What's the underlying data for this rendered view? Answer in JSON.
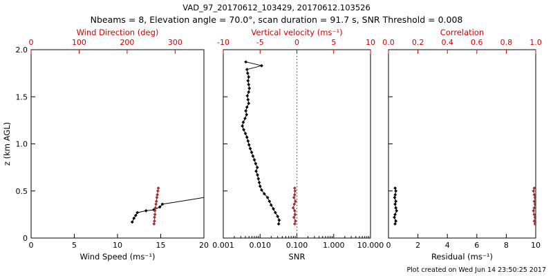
{
  "title": "VAD_97_20170612_103429, 20170612.103526",
  "subtitle": "Nbeams = 8, Elevation angle = 70.0°, scan duration = 91.7 s, SNR Threshold = 0.008",
  "footnote": "Plot created on Wed Jun 14 23:50:25 2017",
  "palette": {
    "black": "#000000",
    "axis_red": "#d40000",
    "marker_red": "#a03030"
  },
  "chart_data": [
    {
      "id": "wind-profile",
      "type": "line",
      "y_axis": {
        "label": "z (km AGL)",
        "range": [
          0,
          2.0
        ],
        "ticks": [
          0,
          0.5,
          1.0,
          1.5,
          2.0
        ],
        "tick_labels": [
          "0",
          "0.5",
          "1.0",
          "1.5",
          "2.0"
        ],
        "show_labels": true
      },
      "bottom_axis": {
        "label": "Wind Speed (ms⁻¹)",
        "scale": "linear",
        "range": [
          0,
          20
        ],
        "ticks": [
          0,
          5,
          10,
          15,
          20
        ],
        "tick_labels": [
          "0",
          "5",
          "10",
          "15",
          "20"
        ]
      },
      "top_axis": {
        "label": "Wind Direction (deg)",
        "scale": "linear",
        "range": [
          0,
          360
        ],
        "ticks": [
          0,
          100,
          200,
          300
        ],
        "tick_labels": [
          "0",
          "100",
          "200",
          "300"
        ]
      },
      "series": [
        {
          "name": "wind-speed",
          "axis": "bottom",
          "color": "black",
          "edge_clip": true,
          "points": [
            [
              11.7,
              0.17
            ],
            [
              11.9,
              0.21
            ],
            [
              12.1,
              0.24
            ],
            [
              12.3,
              0.27
            ],
            [
              13.3,
              0.29
            ],
            [
              14.2,
              0.3
            ],
            [
              14.9,
              0.33
            ],
            [
              15.2,
              0.36
            ],
            [
              20.0,
              0.43
            ]
          ]
        },
        {
          "name": "wind-direction",
          "axis": "top",
          "color": "marker_red",
          "points": [
            [
              256,
              0.15
            ],
            [
              257,
              0.18
            ],
            [
              257,
              0.22
            ],
            [
              258,
              0.25
            ],
            [
              258,
              0.29
            ],
            [
              259,
              0.32
            ],
            [
              260,
              0.36
            ],
            [
              261,
              0.39
            ],
            [
              262,
              0.43
            ],
            [
              263,
              0.46
            ],
            [
              264,
              0.5
            ],
            [
              265,
              0.53
            ]
          ]
        }
      ]
    },
    {
      "id": "snr",
      "type": "line",
      "y_axis": {
        "label": null,
        "range": [
          0,
          2.0
        ],
        "ticks": [
          0,
          0.5,
          1.0,
          1.5,
          2.0
        ],
        "tick_labels": [
          "0",
          "0.5",
          "1.0",
          "1.5",
          "2.0"
        ],
        "show_labels": false
      },
      "bottom_axis": {
        "label": "SNR",
        "scale": "log",
        "range": [
          0.001,
          10.0
        ],
        "ticks": [
          0.001,
          0.01,
          0.1,
          1.0,
          10.0
        ],
        "tick_labels": [
          "0.001",
          "0.010",
          "0.100",
          "1.000",
          "10.000"
        ]
      },
      "top_axis": {
        "label": "Vertical velocity (ms⁻¹)",
        "scale": "linear",
        "range": [
          -10,
          10
        ],
        "ticks": [
          -10,
          -5,
          0,
          5,
          10
        ],
        "tick_labels": [
          "-10",
          "-5",
          "0",
          "5",
          "10"
        ]
      },
      "ref_lines": [
        {
          "axis": "top",
          "value": 0,
          "color": "axis_red",
          "style": "dotted"
        }
      ],
      "series": [
        {
          "name": "snr-profile",
          "axis": "bottom",
          "color": "black",
          "points": [
            [
              0.032,
              0.15
            ],
            [
              0.033,
              0.19
            ],
            [
              0.03,
              0.23
            ],
            [
              0.026,
              0.27
            ],
            [
              0.023,
              0.31
            ],
            [
              0.02,
              0.35
            ],
            [
              0.018,
              0.39
            ],
            [
              0.016,
              0.43
            ],
            [
              0.013,
              0.47
            ],
            [
              0.011,
              0.51
            ],
            [
              0.01,
              0.55
            ],
            [
              0.0095,
              0.59
            ],
            [
              0.009,
              0.63
            ],
            [
              0.0085,
              0.67
            ],
            [
              0.0078,
              0.71
            ],
            [
              0.0084,
              0.75
            ],
            [
              0.0076,
              0.79
            ],
            [
              0.007,
              0.83
            ],
            [
              0.0064,
              0.87
            ],
            [
              0.0059,
              0.91
            ],
            [
              0.0054,
              0.95
            ],
            [
              0.005,
              0.99
            ],
            [
              0.0047,
              1.03
            ],
            [
              0.0044,
              1.07
            ],
            [
              0.004,
              1.11
            ],
            [
              0.0036,
              1.15
            ],
            [
              0.0033,
              1.19
            ],
            [
              0.0035,
              1.23
            ],
            [
              0.0039,
              1.27
            ],
            [
              0.0043,
              1.31
            ],
            [
              0.0041,
              1.35
            ],
            [
              0.0044,
              1.39
            ],
            [
              0.0049,
              1.43
            ],
            [
              0.0047,
              1.47
            ],
            [
              0.0045,
              1.51
            ],
            [
              0.0049,
              1.55
            ],
            [
              0.0051,
              1.59
            ],
            [
              0.0049,
              1.63
            ],
            [
              0.0047,
              1.67
            ],
            [
              0.0049,
              1.71
            ],
            [
              0.0046,
              1.75
            ],
            [
              0.0044,
              1.79
            ],
            [
              0.011,
              1.83
            ],
            [
              0.0041,
              1.87
            ]
          ]
        },
        {
          "name": "vertical-velocity",
          "axis": "top",
          "color": "marker_red",
          "points": [
            [
              -0.3,
              0.15
            ],
            [
              -0.2,
              0.18
            ],
            [
              -0.4,
              0.22
            ],
            [
              -0.25,
              0.25
            ],
            [
              -0.3,
              0.29
            ],
            [
              -0.5,
              0.32
            ],
            [
              -0.35,
              0.36
            ],
            [
              -0.2,
              0.39
            ],
            [
              -0.4,
              0.43
            ],
            [
              -0.3,
              0.46
            ],
            [
              -0.25,
              0.5
            ],
            [
              -0.3,
              0.53
            ]
          ]
        }
      ]
    },
    {
      "id": "residual",
      "type": "line",
      "y_axis": {
        "label": null,
        "range": [
          0,
          2.0
        ],
        "ticks": [
          0,
          0.5,
          1.0,
          1.5,
          2.0
        ],
        "tick_labels": [
          "0",
          "0.5",
          "1.0",
          "1.5",
          "2.0"
        ],
        "show_labels": false
      },
      "bottom_axis": {
        "label": "Residual (ms⁻¹)",
        "scale": "linear",
        "range": [
          0,
          10
        ],
        "ticks": [
          0,
          2,
          4,
          6,
          8,
          10
        ],
        "tick_labels": [
          "0",
          "2",
          "4",
          "6",
          "8",
          "10"
        ]
      },
      "top_axis": {
        "label": "Correlation",
        "scale": "linear",
        "range": [
          0.0,
          1.0
        ],
        "ticks": [
          0.0,
          0.2,
          0.4,
          0.6,
          0.8,
          1.0
        ],
        "tick_labels": [
          "0.0",
          "0.2",
          "0.4",
          "0.6",
          "0.8",
          "1.0"
        ]
      },
      "series": [
        {
          "name": "residual",
          "axis": "bottom",
          "color": "black",
          "points": [
            [
              0.45,
              0.15
            ],
            [
              0.5,
              0.18
            ],
            [
              0.4,
              0.22
            ],
            [
              0.45,
              0.25
            ],
            [
              0.55,
              0.29
            ],
            [
              0.5,
              0.32
            ],
            [
              0.45,
              0.36
            ],
            [
              0.5,
              0.39
            ],
            [
              0.42,
              0.43
            ],
            [
              0.46,
              0.46
            ],
            [
              0.5,
              0.5
            ],
            [
              0.45,
              0.53
            ]
          ]
        },
        {
          "name": "correlation",
          "axis": "top",
          "color": "marker_red",
          "points": [
            [
              0.995,
              0.15
            ],
            [
              0.99,
              0.18
            ],
            [
              0.995,
              0.22
            ],
            [
              0.99,
              0.25
            ],
            [
              0.985,
              0.29
            ],
            [
              0.99,
              0.32
            ],
            [
              0.995,
              0.36
            ],
            [
              0.99,
              0.39
            ],
            [
              0.995,
              0.43
            ],
            [
              0.99,
              0.46
            ],
            [
              0.985,
              0.5
            ],
            [
              0.99,
              0.53
            ]
          ]
        }
      ]
    }
  ]
}
